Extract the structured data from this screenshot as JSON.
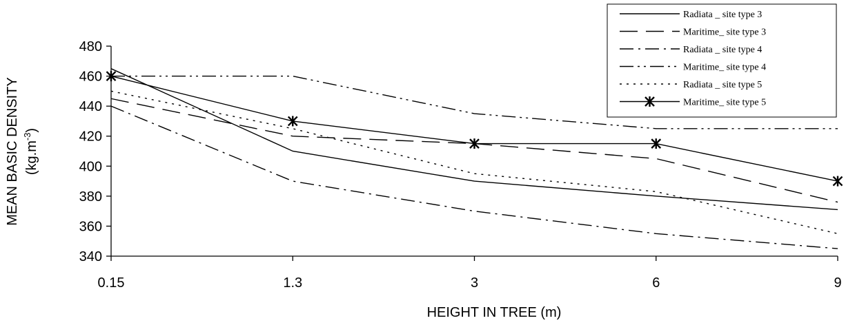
{
  "chart_data": {
    "type": "line",
    "xlabel": "HEIGHT IN TREE (m)",
    "ylabel": "MEAN BASIC DENSITY",
    "ylabel_unit": "(kg.m-3)",
    "categories": [
      "0.15",
      "1.3",
      "3",
      "6",
      "9"
    ],
    "y_ticks": [
      "340",
      "360",
      "380",
      "400",
      "420",
      "440",
      "460",
      "480"
    ],
    "ylim": [
      340,
      480
    ],
    "grid": false,
    "legend_position": "top-right",
    "series": [
      {
        "name": "Radiata _ site type 3",
        "values": [
          465,
          410,
          390,
          380,
          371
        ],
        "style": "solid"
      },
      {
        "name": "Maritime_ site type 3",
        "values": [
          445,
          420,
          415,
          405,
          376
        ],
        "style": "long-dash"
      },
      {
        "name": "Radiata _ site type 4",
        "values": [
          440,
          390,
          370,
          355,
          345
        ],
        "style": "dash-dot"
      },
      {
        "name": "Maritime_ site type 4",
        "values": [
          460,
          460,
          435,
          425,
          425
        ],
        "style": "dash-dot-dot"
      },
      {
        "name": "Radiata _ site type 5",
        "values": [
          450,
          425,
          395,
          383,
          355
        ],
        "style": "dotted"
      },
      {
        "name": "Maritime_ site type 5",
        "values": [
          460,
          430,
          415,
          415,
          390
        ],
        "style": "solid-star"
      }
    ]
  }
}
